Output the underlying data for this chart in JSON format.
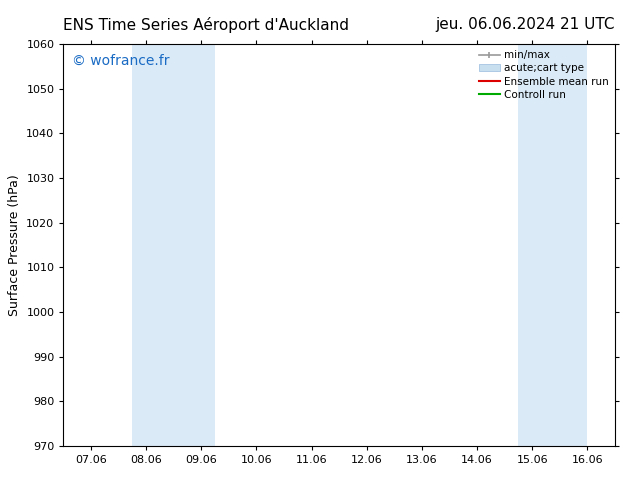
{
  "title_left": "ENS Time Series Aéroport d'Auckland",
  "title_right": "jeu. 06.06.2024 21 UTC",
  "ylabel": "Surface Pressure (hPa)",
  "watermark": "© wofrance.fr",
  "watermark_color": "#1a6bc4",
  "ylim": [
    970,
    1060
  ],
  "yticks": [
    970,
    980,
    990,
    1000,
    1010,
    1020,
    1030,
    1040,
    1050,
    1060
  ],
  "xtick_labels": [
    "07.06",
    "08.06",
    "09.06",
    "10.06",
    "11.06",
    "12.06",
    "13.06",
    "14.06",
    "15.06",
    "16.06"
  ],
  "xlim": [
    0,
    9
  ],
  "shaded_bands": [
    {
      "xmin": 0.75,
      "xmax": 2.25,
      "color": "#daeaf7"
    },
    {
      "xmin": 7.75,
      "xmax": 9.0,
      "color": "#daeaf7"
    }
  ],
  "bg_color": "#ffffff",
  "plot_bg_color": "#ffffff",
  "legend_entries": [
    {
      "label": "min/max",
      "color": "#aaaaaa",
      "style": "minmax"
    },
    {
      "label": "acute;cart type",
      "color": "#c8dff0",
      "style": "band"
    },
    {
      "label": "Ensemble mean run",
      "color": "#dd0000",
      "style": "line"
    },
    {
      "label": "Controll run",
      "color": "#00aa00",
      "style": "line"
    }
  ],
  "title_fontsize": 11,
  "axis_label_fontsize": 9,
  "tick_fontsize": 8,
  "watermark_fontsize": 10
}
